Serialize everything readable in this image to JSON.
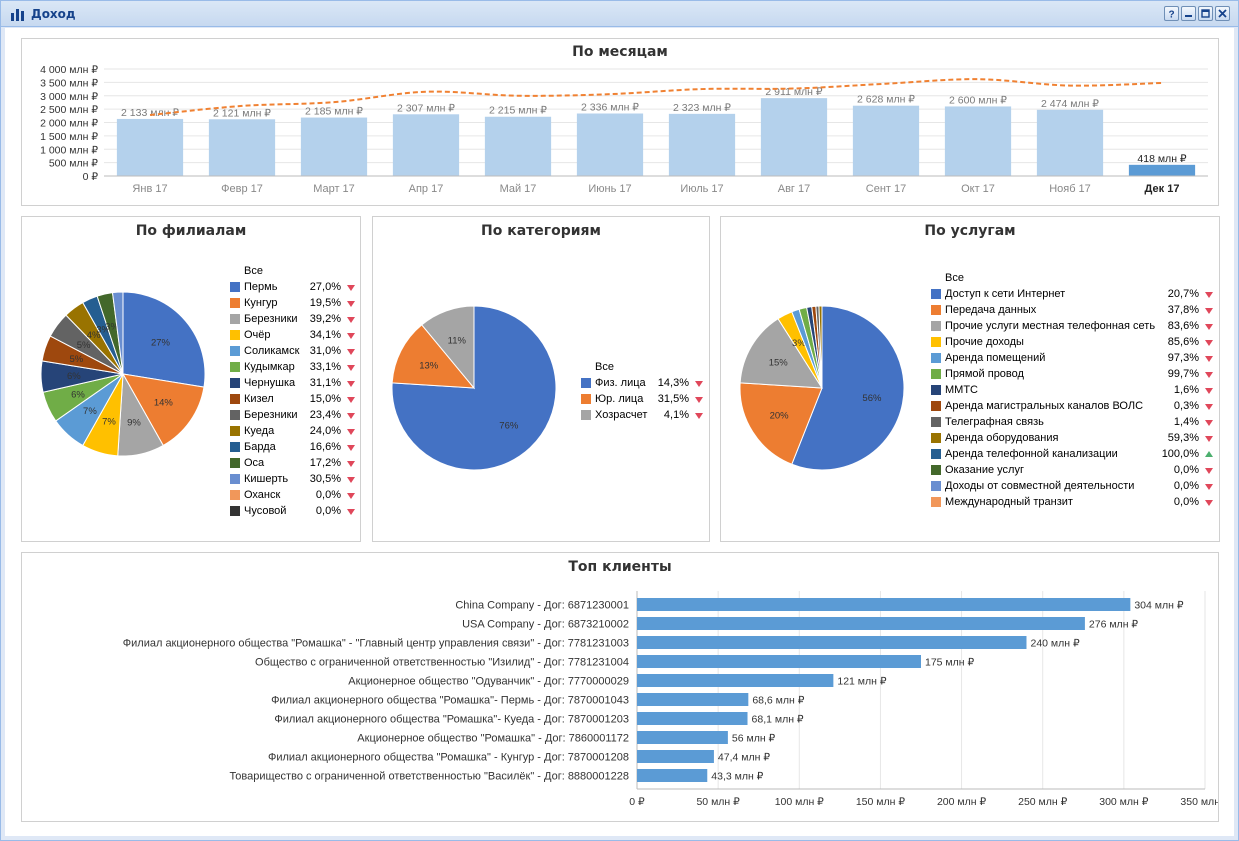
{
  "window": {
    "title": "Доход",
    "tools": [
      "help-icon",
      "minimize-icon",
      "maximize-icon",
      "close-icon"
    ]
  },
  "colors": {
    "bar": "#b4d1ec",
    "bar_current": "#5b9bd5",
    "trend": "#f08132",
    "hbar": "#5b9bd5"
  },
  "monthly": {
    "title": "По месяцам",
    "chart_data": {
      "type": "bar",
      "categories": [
        "Янв 17",
        "Февр 17",
        "Март 17",
        "Апр 17",
        "Май 17",
        "Июнь 17",
        "Июль 17",
        "Авг 17",
        "Сент 17",
        "Окт 17",
        "Нояб 17",
        "Дек 17"
      ],
      "values": [
        2133,
        2121,
        2185,
        2307,
        2215,
        2336,
        2323,
        2911,
        2628,
        2600,
        2474,
        418
      ],
      "value_labels": [
        "2 133 млн ₽",
        "2 121 млн ₽",
        "2 185 млн ₽",
        "2 307 млн ₽",
        "2 215 млн ₽",
        "2 336 млн ₽",
        "2 323 млн ₽",
        "2 911 млн ₽",
        "2 628 млн ₽",
        "2 600 млн ₽",
        "2 474 млн ₽",
        "418 млн ₽"
      ],
      "trend": [
        2280,
        2620,
        2760,
        3150,
        3000,
        3060,
        3250,
        3270,
        3450,
        3620,
        3380,
        3480
      ],
      "ylim": [
        0,
        4000
      ],
      "yticks": [
        0,
        500,
        1000,
        1500,
        2000,
        2500,
        3000,
        3500,
        4000
      ],
      "ytick_labels": [
        "0 ₽",
        "500 млн ₽",
        "1 000 млн ₽",
        "1 500 млн ₽",
        "2 000 млн ₽",
        "2 500 млн ₽",
        "3 000 млн ₽",
        "3 500 млн ₽",
        "4 000 млн ₽"
      ],
      "current_index": 11,
      "grid": true
    }
  },
  "branches": {
    "title": "По филиалам",
    "legend_header": "Все",
    "chart_data": {
      "type": "pie",
      "labels": [
        "Пермь",
        "Кунгур",
        "Березники",
        "Очёр",
        "Соликамск",
        "Кудымкар",
        "Чернушка",
        "Кизел",
        "Березники",
        "Куеда",
        "Барда",
        "Оса",
        "Кишерть",
        "Оханск",
        "Чусовой"
      ],
      "values": [
        27,
        14,
        9,
        7,
        7,
        6,
        6,
        5,
        5,
        4,
        3,
        3,
        2,
        0,
        0
      ],
      "slice_labels": [
        "27%",
        "14%",
        "9%",
        "7%",
        "7%",
        "6%",
        "6%",
        "5%",
        "5%",
        "4%",
        "3%",
        "3%",
        "",
        "",
        ""
      ],
      "colors": [
        "#4472c4",
        "#ed7d31",
        "#a5a5a5",
        "#ffc000",
        "#5b9bd5",
        "#70ad47",
        "#264478",
        "#9e480e",
        "#636363",
        "#997300",
        "#255e91",
        "#43682b",
        "#698ed0",
        "#f1975a",
        "#333333"
      ],
      "pcts": [
        "27,0%",
        "19,5%",
        "39,2%",
        "34,1%",
        "31,0%",
        "33,1%",
        "31,1%",
        "15,0%",
        "23,4%",
        "24,0%",
        "16,6%",
        "17,2%",
        "30,5%",
        "0,0%",
        "0,0%"
      ],
      "trend": [
        "down",
        "down",
        "down",
        "down",
        "down",
        "down",
        "down",
        "down",
        "down",
        "down",
        "down",
        "down",
        "down",
        "down",
        "down"
      ]
    }
  },
  "categories": {
    "title": "По категориям",
    "legend_header": "Все",
    "chart_data": {
      "type": "pie",
      "labels": [
        "Физ. лица",
        "Юр. лица",
        "Хозрасчет"
      ],
      "values": [
        76,
        13,
        11
      ],
      "slice_labels": [
        "76%",
        "13%",
        "11%"
      ],
      "colors": [
        "#4472c4",
        "#ed7d31",
        "#a5a5a5"
      ],
      "pcts": [
        "14,3%",
        "31,5%",
        "4,1%"
      ],
      "trend": [
        "down",
        "down",
        "down"
      ]
    }
  },
  "services": {
    "title": "По услугам",
    "legend_header": "Все",
    "chart_data": {
      "type": "pie",
      "labels": [
        "Доступ к сети Интернет",
        "Передача данных",
        "Прочие услуги местная телефонная сеть",
        "Прочие доходы",
        "Аренда помещений",
        "Прямой провод",
        "ММТС",
        "Аренда магистральных каналов ВОЛС",
        "Телеграфная связь",
        "Аренда оборудования",
        "Аренда телефонной канализации",
        "Оказание услуг",
        "Доходы от совместной деятельности",
        "Международный транзит"
      ],
      "values": [
        56,
        20,
        15,
        3,
        1.5,
        1.5,
        1,
        0.8,
        0.6,
        0.6,
        0,
        0,
        0,
        0
      ],
      "slice_labels": [
        "56%",
        "20%",
        "15%",
        "3%",
        "",
        "",
        "",
        "",
        "",
        "",
        "",
        "",
        "",
        ""
      ],
      "colors": [
        "#4472c4",
        "#ed7d31",
        "#a5a5a5",
        "#ffc000",
        "#5b9bd5",
        "#70ad47",
        "#264478",
        "#9e480e",
        "#636363",
        "#997300",
        "#255e91",
        "#43682b",
        "#698ed0",
        "#f1975a"
      ],
      "pcts": [
        "20,7%",
        "37,8%",
        "83,6%",
        "85,6%",
        "97,3%",
        "99,7%",
        "1,6%",
        "0,3%",
        "1,4%",
        "59,3%",
        "100,0%",
        "0,0%",
        "0,0%",
        "0,0%"
      ],
      "trend": [
        "down",
        "down",
        "down",
        "down",
        "down",
        "down",
        "down",
        "down",
        "down",
        "down",
        "up",
        "down",
        "down",
        "down"
      ]
    }
  },
  "clients": {
    "title": "Топ клиенты",
    "chart_data": {
      "type": "bar",
      "orientation": "horizontal",
      "categories": [
        "China Company - Дог: 6871230001",
        "USA Company - Дог: 6873210002",
        "Филиал акционерного общества \"Ромашка\" - \"Главный центр управления связи\" - Дог: 7781231003",
        "Общество с ограниченной ответственностью \"Изилид\" - Дог: 7781231004",
        "Акционерное общество \"Одуванчик\" - Дог: 7770000029",
        "Филиал акционерного общества \"Ромашка\"- Пермь - Дог: 7870001043",
        "Филиал акционерного общества \"Ромашка\"- Куеда - Дог: 7870001203",
        "Акционерное общество \"Ромашка\" - Дог: 7860001172",
        "Филиал акционерного общества \"Ромашка\" - Кунгур - Дог: 7870001208",
        "Товарищество с ограниченной ответственностью \"Василёк\" - Дог: 8880001228"
      ],
      "values": [
        304,
        276,
        240,
        175,
        121,
        68.6,
        68.1,
        56,
        47.4,
        43.3
      ],
      "value_labels": [
        "304 млн ₽",
        "276 млн ₽",
        "240 млн ₽",
        "175 млн ₽",
        "121 млн ₽",
        "68,6 млн ₽",
        "68,1 млн ₽",
        "56 млн ₽",
        "47,4 млн ₽",
        "43,3 млн ₽"
      ],
      "xlim": [
        0,
        350
      ],
      "xticks": [
        0,
        50,
        100,
        150,
        200,
        250,
        300,
        350
      ],
      "xtick_labels": [
        "0 ₽",
        "50 млн ₽",
        "100 млн ₽",
        "150 млн ₽",
        "200 млн ₽",
        "250 млн ₽",
        "300 млн ₽",
        "350 млн ₽"
      ],
      "grid": true
    }
  }
}
